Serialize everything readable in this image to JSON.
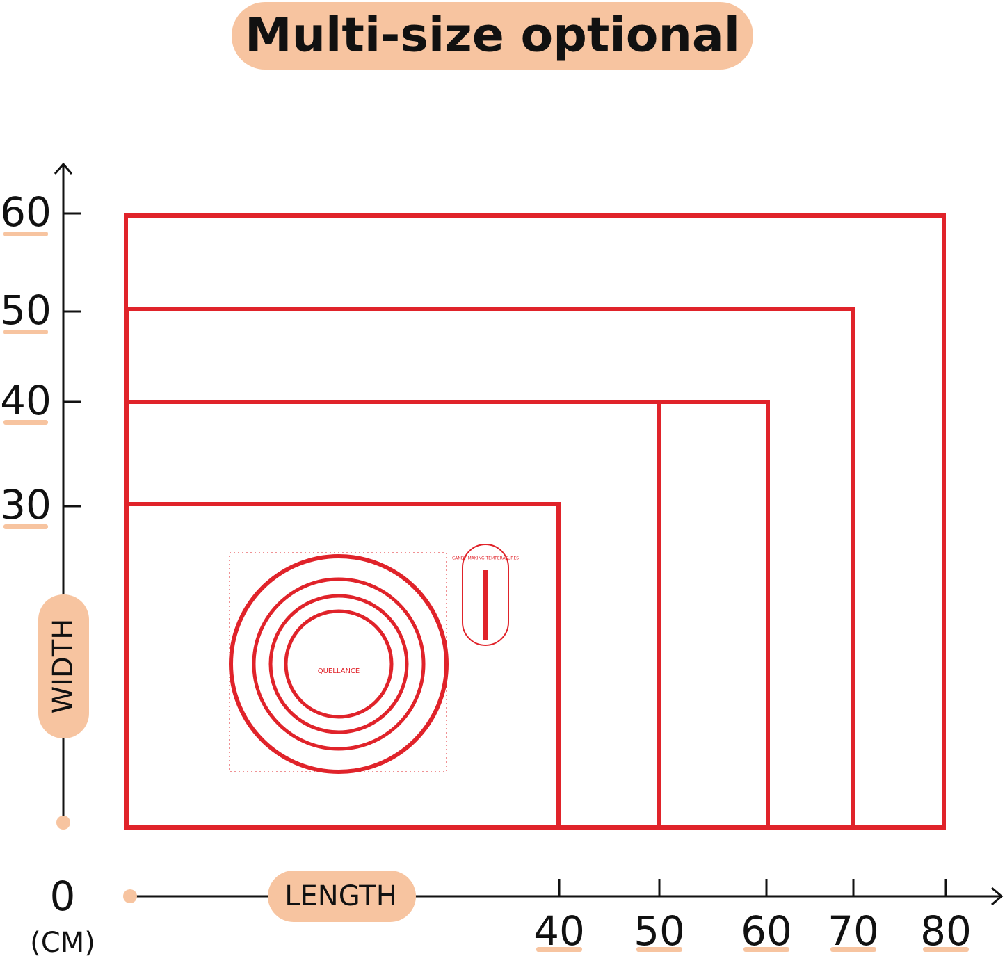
{
  "title": "Multi-size optional",
  "y_axis": {
    "label": "WIDTH",
    "ticks": [
      60,
      50,
      40,
      30
    ]
  },
  "x_axis": {
    "label": "LENGTH",
    "ticks": [
      40,
      50,
      60,
      70,
      80
    ]
  },
  "origin": {
    "value": "0",
    "unit": "(CM)"
  },
  "mat": {
    "brand": "QUELLANCE",
    "panel": "CANDY MAKING TEMPERATURES"
  }
}
